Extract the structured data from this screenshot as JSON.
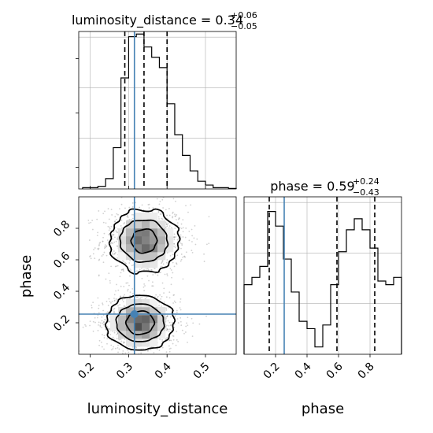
{
  "chart_data": {
    "type": "corner",
    "parameters": [
      "luminosity_distance",
      "phase"
    ],
    "colors": {
      "truth": "#4682b4",
      "hist": "#000000",
      "grid": "#b0b0b0",
      "quantile": "#000000"
    },
    "truths": {
      "luminosity_distance": 0.315,
      "phase": 0.255
    },
    "panels": {
      "luminosity_distance_hist": {
        "type": "bar",
        "title": {
          "main": "luminosity_distance = 0.34",
          "sup": "+0.06",
          "sub": "−0.05"
        },
        "xlim": [
          0.17,
          0.58
        ],
        "ylim": [
          0,
          61
        ],
        "xticks": [
          0.2,
          0.3,
          0.4,
          0.5
        ],
        "bin_edges": [
          0.18,
          0.2,
          0.22,
          0.24,
          0.26,
          0.28,
          0.3,
          0.32,
          0.34,
          0.36,
          0.38,
          0.4,
          0.42,
          0.44,
          0.46,
          0.48,
          0.5,
          0.52,
          0.54,
          0.56,
          0.58
        ],
        "values": [
          0.5,
          0.5,
          1,
          4,
          16,
          43,
          59,
          60,
          55,
          51,
          47,
          33,
          21,
          13,
          7,
          3,
          1.5,
          0.5,
          0.5,
          0.2
        ],
        "quantiles": [
          0.29,
          0.34,
          0.4
        ],
        "truth": 0.315
      },
      "phase_hist": {
        "type": "bar",
        "title": {
          "main": "phase = 0.59",
          "sup": "+0.24",
          "sub": "−0.43"
        },
        "xlim": [
          0.0,
          1.0
        ],
        "ylim": [
          0,
          43
        ],
        "xticks": [
          0.2,
          0.4,
          0.6,
          0.8
        ],
        "bin_edges": [
          0.0,
          0.05,
          0.1,
          0.15,
          0.2,
          0.25,
          0.3,
          0.35,
          0.4,
          0.45,
          0.5,
          0.55,
          0.6,
          0.65,
          0.7,
          0.75,
          0.8,
          0.85,
          0.9,
          0.95,
          1.0
        ],
        "values": [
          19,
          21,
          24,
          39,
          35,
          26,
          17,
          9,
          7,
          2,
          8,
          19,
          28,
          34,
          37,
          34,
          29,
          20,
          19,
          21
        ],
        "quantiles": [
          0.16,
          0.59,
          0.83
        ],
        "truth": 0.255
      },
      "joint": {
        "type": "heatmap",
        "xlim": [
          0.17,
          0.58
        ],
        "ylim": [
          0.0,
          1.0
        ],
        "xticks": [
          0.2,
          0.3,
          0.4,
          0.5
        ],
        "yticks": [
          0.2,
          0.4,
          0.6,
          0.8
        ],
        "modes": [
          {
            "x": 0.34,
            "y": 0.72,
            "sx": 0.045,
            "sy": 0.1,
            "w": 1.0
          },
          {
            "x": 0.33,
            "y": 0.2,
            "sx": 0.043,
            "sy": 0.085,
            "w": 1.1
          }
        ],
        "truth_point": [
          0.315,
          0.255
        ]
      }
    },
    "xlabels": {
      "luminosity_distance": "luminosity_distance",
      "phase": "phase"
    },
    "ylabels": {
      "phase": "phase"
    }
  }
}
